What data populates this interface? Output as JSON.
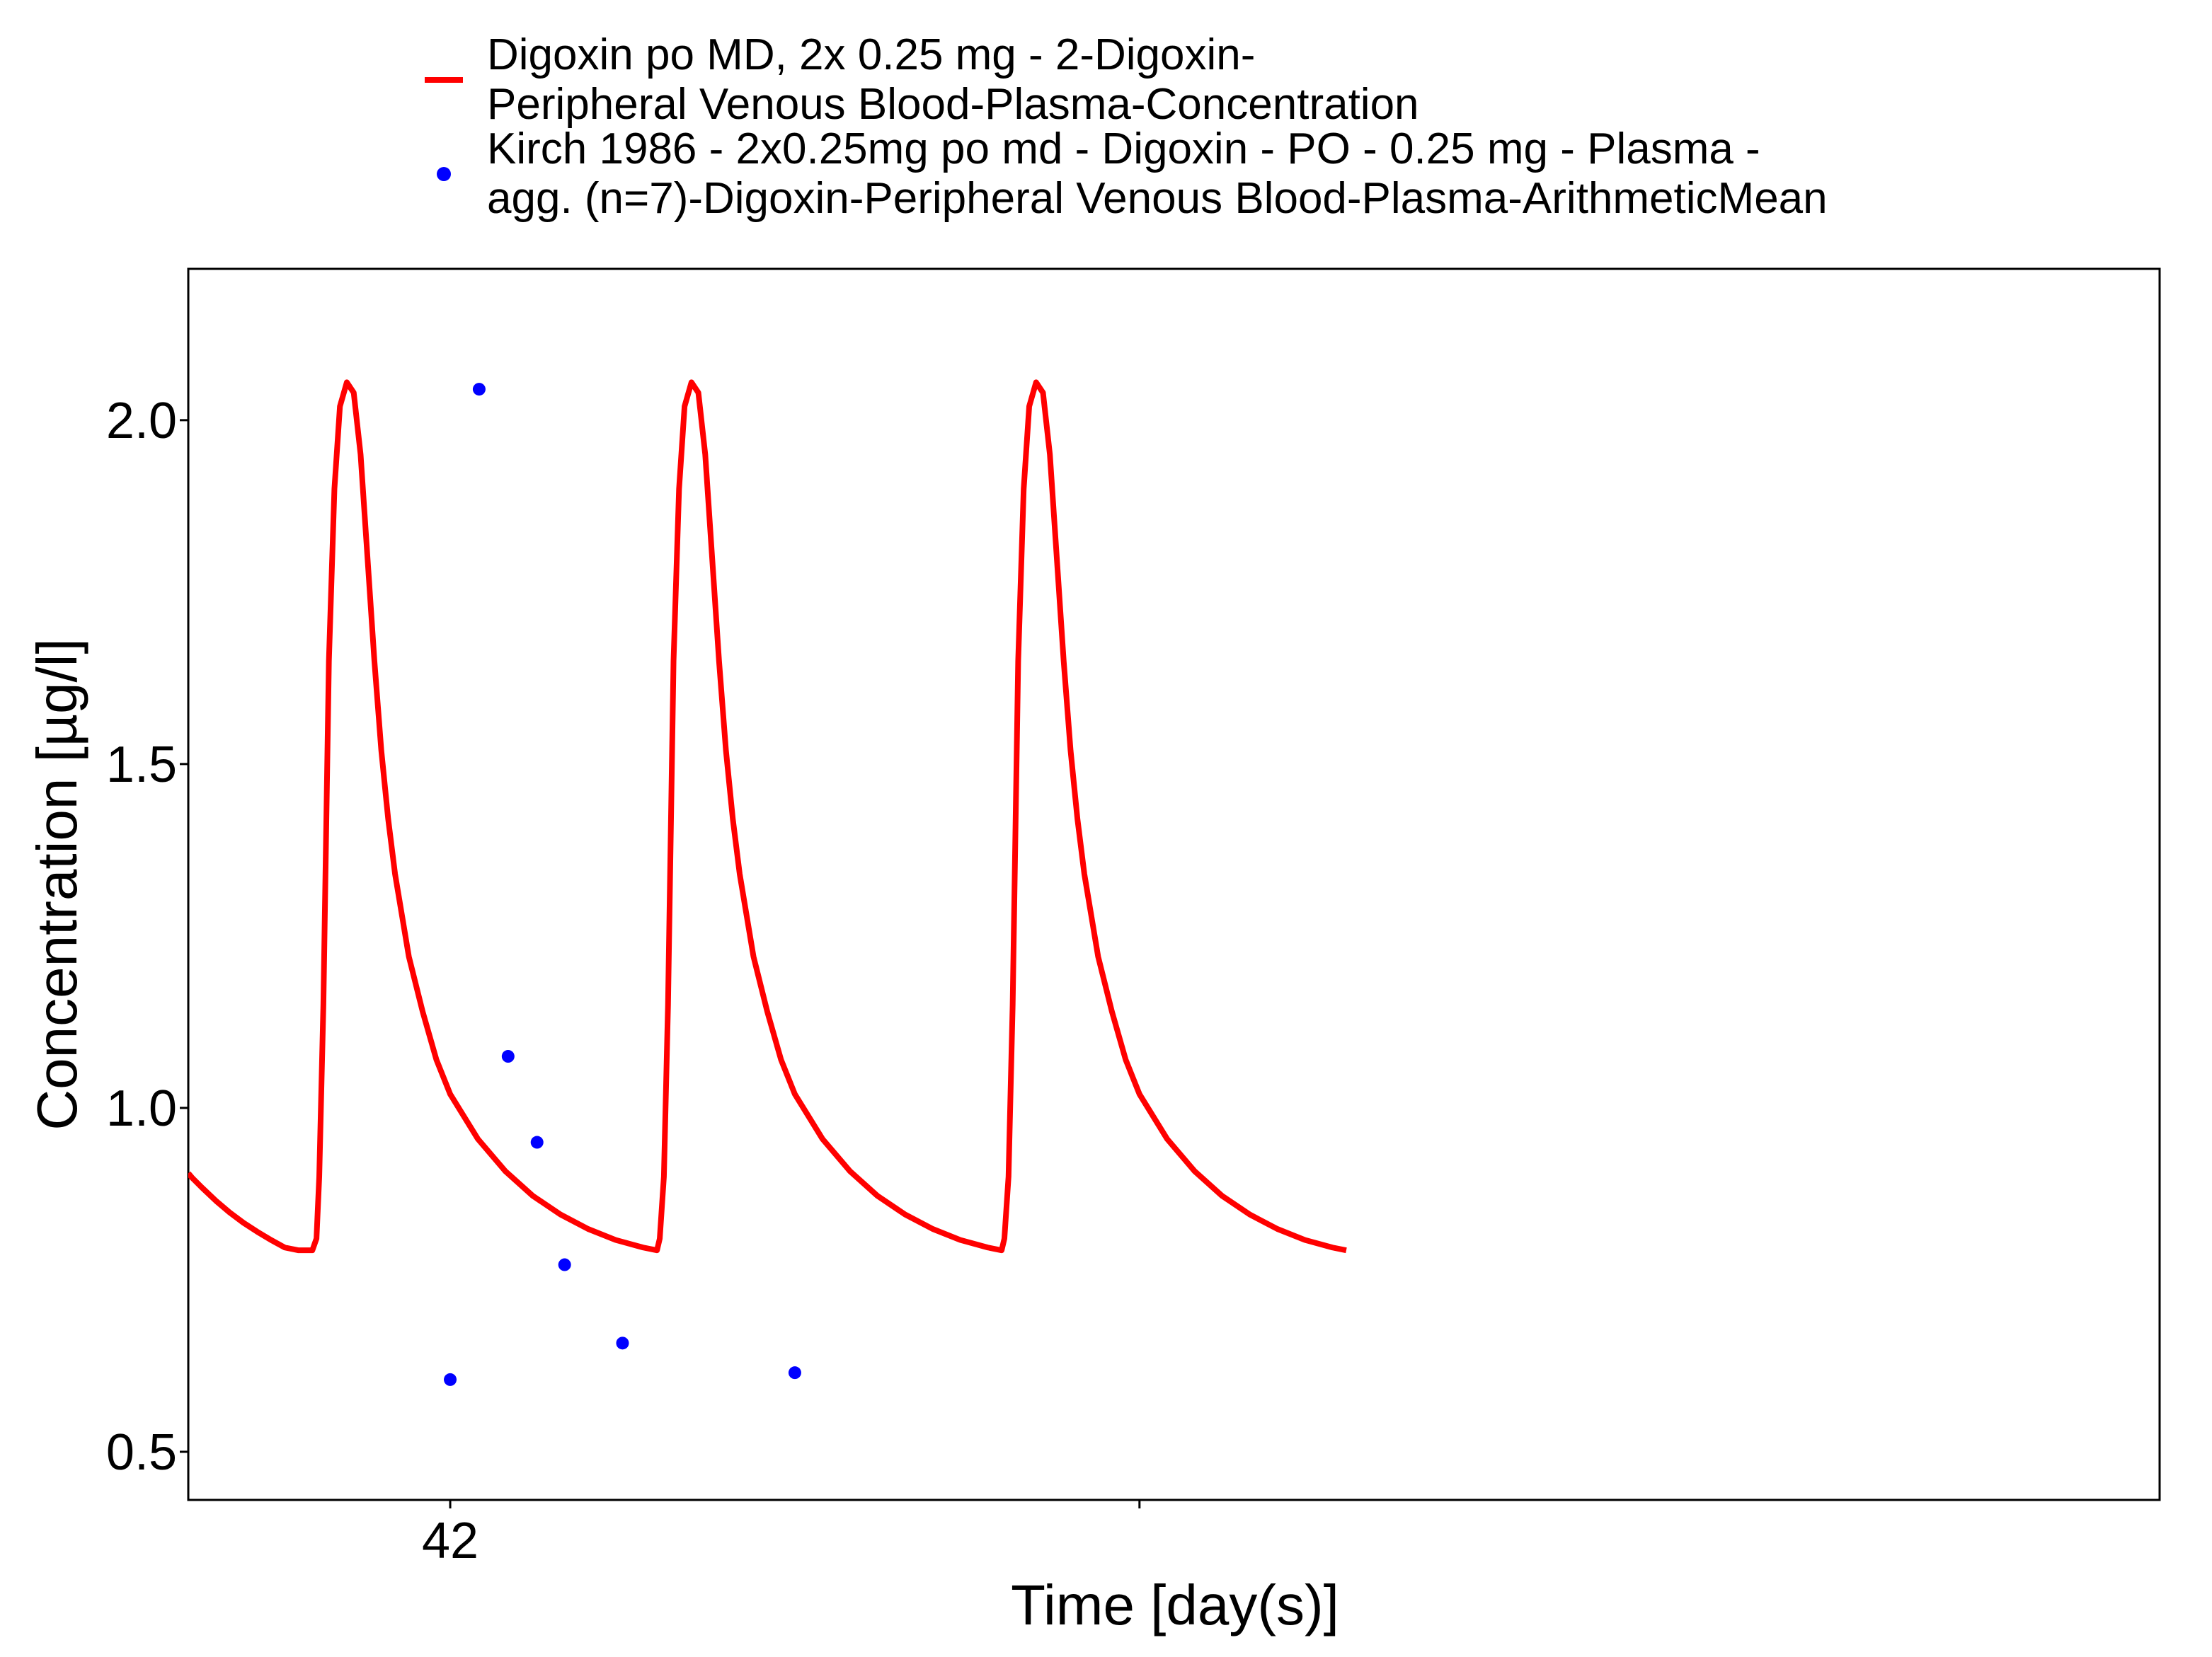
{
  "chart_data": {
    "type": "line",
    "title": "",
    "xlabel": "Time [day(s)]",
    "ylabel": "Concentration [µg/l]",
    "xlim": [
      41.81,
      43.24
    ],
    "ylim": [
      0.43,
      2.22
    ],
    "x_ticks": [
      41.5,
      42,
      42.5
    ],
    "x_tick_labels": [
      "",
      "42",
      ""
    ],
    "y_ticks": [
      0.5,
      1.0,
      1.5,
      2.0
    ],
    "y_tick_labels": [
      "0.5",
      "1.0",
      "1.5",
      "2.0"
    ],
    "grid": false,
    "legend_position": "top",
    "series": [
      {
        "name": "Digoxin po MD, 2x 0.25 mg - 2-Digoxin-\nPeripheral Venous Blood-Plasma-Concentration",
        "kind": "line",
        "color": "#ff0000",
        "x": [
          41.81,
          41.813,
          41.82,
          41.83,
          41.84,
          41.85,
          41.86,
          41.87,
          41.88,
          41.89,
          41.9,
          41.903,
          41.905,
          41.908,
          41.912,
          41.916,
          41.92,
          41.925,
          41.93,
          41.935,
          41.94,
          41.945,
          41.95,
          41.955,
          41.96,
          41.965,
          41.97,
          41.98,
          41.99,
          42.0,
          42.02,
          42.04,
          42.06,
          42.08,
          42.1,
          42.12,
          42.14,
          42.15,
          42.152,
          42.155,
          42.158,
          42.162,
          42.166,
          42.17,
          42.175,
          42.18,
          42.185,
          42.19,
          42.195,
          42.2,
          42.205,
          42.21,
          42.215,
          42.22,
          42.23,
          42.24,
          42.25,
          42.27,
          42.29,
          42.31,
          42.33,
          42.35,
          42.37,
          42.39,
          42.4,
          42.402,
          42.405,
          42.408,
          42.412,
          42.416,
          42.42,
          42.425,
          42.43,
          42.435,
          42.44,
          42.445,
          42.45,
          42.455,
          42.46,
          42.465,
          42.47,
          42.48,
          42.49,
          42.5,
          42.52,
          42.54,
          42.56,
          42.58,
          42.6,
          42.62,
          42.64,
          42.65
        ],
        "y": [
          0.905,
          0.898,
          0.884,
          0.865,
          0.848,
          0.833,
          0.82,
          0.808,
          0.797,
          0.793,
          0.793,
          0.81,
          0.9,
          1.15,
          1.65,
          1.9,
          2.02,
          2.055,
          2.04,
          1.95,
          1.8,
          1.65,
          1.52,
          1.42,
          1.34,
          1.28,
          1.22,
          1.14,
          1.07,
          1.02,
          0.955,
          0.908,
          0.872,
          0.845,
          0.824,
          0.808,
          0.797,
          0.793,
          0.81,
          0.9,
          1.15,
          1.65,
          1.9,
          2.02,
          2.055,
          2.04,
          1.95,
          1.8,
          1.65,
          1.52,
          1.42,
          1.34,
          1.28,
          1.22,
          1.14,
          1.07,
          1.02,
          0.955,
          0.908,
          0.872,
          0.845,
          0.824,
          0.808,
          0.797,
          0.793,
          0.81,
          0.9,
          1.15,
          1.65,
          1.9,
          2.02,
          2.055,
          2.04,
          1.95,
          1.8,
          1.65,
          1.52,
          1.42,
          1.34,
          1.28,
          1.22,
          1.14,
          1.07,
          1.02,
          0.955,
          0.908,
          0.872,
          0.845,
          0.824,
          0.808,
          0.797,
          0.793
        ]
      },
      {
        "name": "Kirch 1986 - 2x0.25mg po md - Digoxin - PO - 0.25 mg - Plasma -\nagg. (n=7)-Digoxin-Peripheral Venous Blood-Plasma-ArithmeticMean",
        "kind": "scatter",
        "color": "#0000ff",
        "x": [
          42.0,
          42.021,
          42.042,
          42.063,
          42.083,
          42.125,
          42.25
        ],
        "y": [
          0.605,
          2.045,
          1.075,
          0.95,
          0.772,
          0.658,
          0.615
        ]
      }
    ]
  }
}
